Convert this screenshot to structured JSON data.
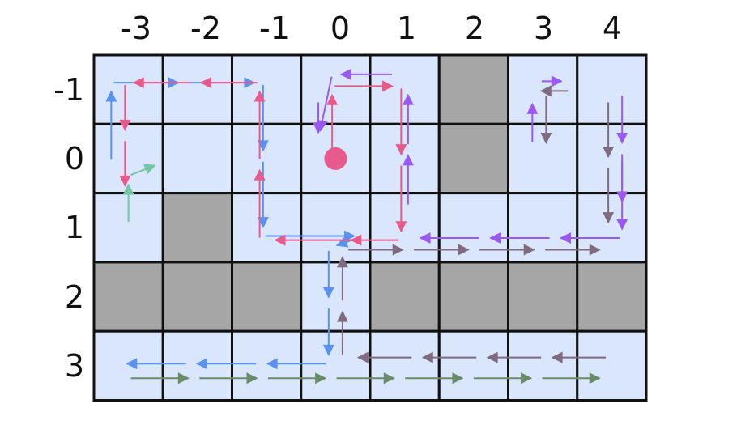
{
  "grid": {
    "col_labels": [
      "-3",
      "-2",
      "-1",
      "0",
      "1",
      "2",
      "3",
      "4"
    ],
    "row_labels": [
      "-1",
      "0",
      "1",
      "2",
      "3"
    ],
    "walls": [
      [
        2,
        -1
      ],
      [
        2,
        0
      ],
      [
        -2,
        1
      ],
      [
        -3,
        2
      ],
      [
        -2,
        2
      ],
      [
        -1,
        2
      ],
      [
        1,
        2
      ],
      [
        2,
        2
      ],
      [
        3,
        2
      ],
      [
        4,
        2
      ]
    ],
    "agent": [
      0,
      0
    ],
    "colors": {
      "cell": "#d9e6fb",
      "wall": "#a6a6a6",
      "grid_line": "#111111",
      "agent": "#e95a8c"
    }
  },
  "paths": [
    {
      "color": "#5b92f0",
      "points": [
        [
          -3.25,
          0.05
        ],
        [
          -3.25,
          -1.1
        ],
        [
          -1.05,
          -1.1
        ],
        [
          -1.05,
          1.12
        ],
        [
          0.4,
          1.12
        ],
        [
          -0.1,
          1.3
        ],
        [
          -0.1,
          2.97
        ],
        [
          -3.15,
          2.97
        ]
      ]
    },
    {
      "color": "#e95a8c",
      "points": [
        [
          -1.1,
          1.18
        ],
        [
          -1.1,
          -1.1
        ],
        [
          -3.05,
          -1.1
        ],
        [
          -3.05,
          0.52
        ]
      ]
    },
    {
      "color": "#e95a8c",
      "points": [
        [
          0.4,
          1.18
        ],
        [
          -1.0,
          1.18
        ]
      ]
    },
    {
      "color": "#e95a8c",
      "points": [
        [
          -0.05,
          0.05
        ],
        [
          -0.05,
          -1.05
        ],
        [
          0.95,
          -1.05
        ],
        [
          0.95,
          1.18
        ],
        [
          0.1,
          1.18
        ]
      ]
    },
    {
      "color": "#9b59f0",
      "points": [
        [
          1.05,
          0.7
        ],
        [
          1.05,
          -1.05
        ]
      ]
    },
    {
      "color": "#9b59f0",
      "points": [
        [
          0.85,
          -1.22
        ],
        [
          -0.05,
          -1.22
        ],
        [
          -0.25,
          -0.28
        ]
      ]
    },
    {
      "color": "#9b59f0",
      "points": [
        [
          -0.25,
          -0.85
        ],
        [
          -0.25,
          -0.25
        ]
      ]
    },
    {
      "color": "#9b59f0",
      "points": [
        [
          4.15,
          1.15
        ],
        [
          1.1,
          1.15
        ]
      ]
    },
    {
      "color": "#9b59f0",
      "points": [
        [
          2.85,
          -0.2
        ],
        [
          2.85,
          -0.92
        ]
      ]
    },
    {
      "color": "#9b59f0",
      "points": [
        [
          2.95,
          -1.12
        ],
        [
          3.4,
          -1.12
        ]
      ]
    },
    {
      "color": "#9b59f0",
      "points": [
        [
          4.15,
          -0.95
        ],
        [
          4.15,
          0.75
        ]
      ]
    },
    {
      "color": "#9b59f0",
      "points": [
        [
          4.15,
          0.0
        ],
        [
          4.15,
          1.15
        ]
      ]
    },
    {
      "color": "#7f6a80",
      "points": [
        [
          3.95,
          -0.85
        ],
        [
          3.95,
          1.05
        ]
      ]
    },
    {
      "color": "#7f6a80",
      "points": [
        [
          3.4,
          -0.98
        ],
        [
          2.85,
          -0.98
        ]
      ]
    },
    {
      "color": "#7f6a80",
      "points": [
        [
          3.05,
          -0.95
        ],
        [
          3.05,
          -0.1
        ]
      ]
    },
    {
      "color": "#7f6a80",
      "points": [
        [
          0.15,
          1.32
        ],
        [
          3.95,
          1.32
        ]
      ]
    },
    {
      "color": "#7f6a80",
      "points": [
        [
          0.1,
          2.88
        ],
        [
          0.1,
          1.3
        ]
      ]
    },
    {
      "color": "#7f6a80",
      "points": [
        [
          3.95,
          2.88
        ],
        [
          0.2,
          2.88
        ]
      ]
    },
    {
      "color": "#74c7a3",
      "points": [
        [
          -3.0,
          0.95
        ],
        [
          -3.0,
          0.25
        ],
        [
          -2.5,
          0.05
        ]
      ]
    },
    {
      "color": "#6a8b6a",
      "points": [
        [
          -3.0,
          3.18
        ],
        [
          3.95,
          3.18
        ]
      ]
    }
  ]
}
